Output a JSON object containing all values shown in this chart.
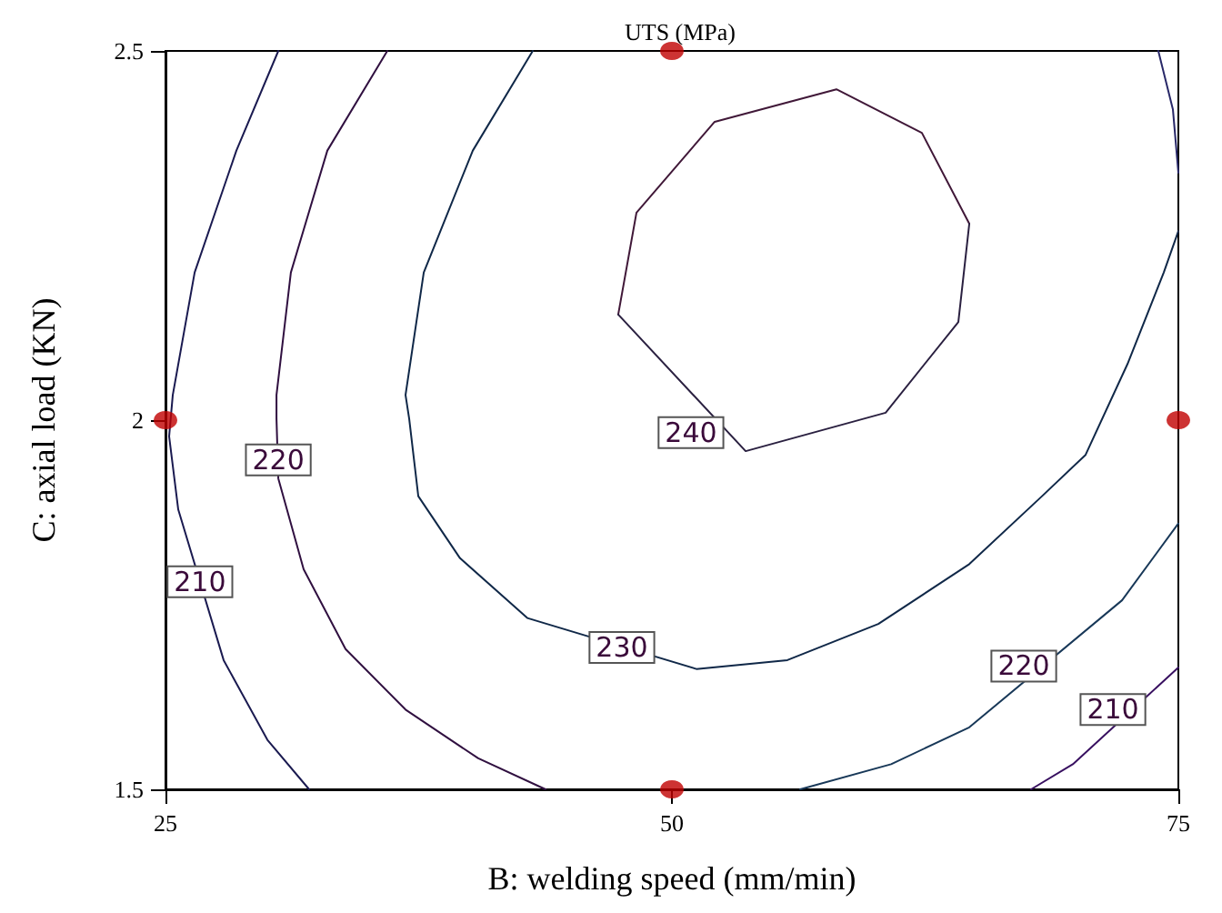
{
  "chart_data": {
    "type": "line",
    "title": "UTS (MPa)",
    "xlabel": "B: welding speed (mm/min)",
    "ylabel": "C: axial load (KN)",
    "xlim": [
      25,
      75
    ],
    "xticks": [
      25,
      50,
      75
    ],
    "ylim": [
      1.5,
      2.5
    ],
    "yticks": [
      1.5,
      2,
      2.5
    ],
    "marker": "none",
    "line_style": "solid",
    "grid": false,
    "series": [
      {
        "color": "#1a1a50",
        "x": [
          30.57,
          28.5,
          26.44,
          25.36,
          25.18,
          25.63,
          27.87,
          30.03,
          32.09
        ],
        "values": [
          2.5,
          2.365,
          2.2,
          2.034,
          1.978,
          1.879,
          1.675,
          1.567,
          1.5
        ]
      },
      {
        "color": "#301040",
        "x": [
          35.95,
          32.99,
          31.19,
          30.48,
          30.48,
          30.57,
          31.82,
          33.89,
          36.85,
          40.44,
          43.76
        ],
        "values": [
          2.5,
          2.365,
          2.2,
          2.034,
          2.002,
          1.921,
          1.798,
          1.69,
          1.608,
          1.542,
          1.5
        ]
      },
      {
        "color": "#102848",
        "x": [
          43.13,
          40.17,
          37.75,
          36.85,
          37.03,
          37.48,
          39.54,
          42.86,
          51.21,
          55.7,
          60.19,
          64.68,
          68.27,
          70.42,
          72.49,
          74.28,
          75
        ],
        "values": [
          2.5,
          2.365,
          2.2,
          2.034,
          2.002,
          1.897,
          1.813,
          1.732,
          1.663,
          1.675,
          1.724,
          1.805,
          1.897,
          1.953,
          2.076,
          2.2,
          2.256
        ]
      },
      {
        "color": "#282868",
        "x": [
          74.01,
          74.73,
          75
        ],
        "values": [
          2.5,
          2.421,
          2.335
        ]
      },
      {
        "color": "#401838",
        "x": [
          47.35,
          48.25,
          52.11,
          58.12,
          62.34,
          64.68
        ],
        "values": [
          2.143,
          2.281,
          2.404,
          2.448,
          2.389,
          2.266
        ]
      },
      {
        "color": "#2a2040",
        "x": [
          47.35,
          53.64,
          60.55,
          64.14,
          64.68
        ],
        "values": [
          2.143,
          1.958,
          2.01,
          2.133,
          2.266
        ]
      },
      {
        "color": "#183858",
        "x": [
          75,
          72.22,
          64.68,
          60.82,
          56.33
        ],
        "values": [
          1.86,
          1.756,
          1.584,
          1.534,
          1.5
        ]
      },
      {
        "color": "#381060",
        "x": [
          75,
          69.79,
          67.73
        ],
        "values": [
          1.665,
          1.534,
          1.5
        ]
      },
      {
        "type": "scatter",
        "marker": "circle",
        "color": "#c00000",
        "x": [
          25,
          50,
          75,
          50
        ],
        "values": [
          2,
          2.5,
          2,
          1.5
        ]
      }
    ],
    "annotations": [
      {
        "text": "240",
        "x": 50.94,
        "y": 1.983
      },
      {
        "text": "230",
        "x": 47.53,
        "y": 1.692
      },
      {
        "text": "220",
        "x": 30.57,
        "y": 1.946
      },
      {
        "text": "210",
        "x": 26.7,
        "y": 1.781
      },
      {
        "text": "220",
        "x": 67.37,
        "y": 1.667
      },
      {
        "text": "210",
        "x": 71.77,
        "y": 1.608
      }
    ]
  }
}
